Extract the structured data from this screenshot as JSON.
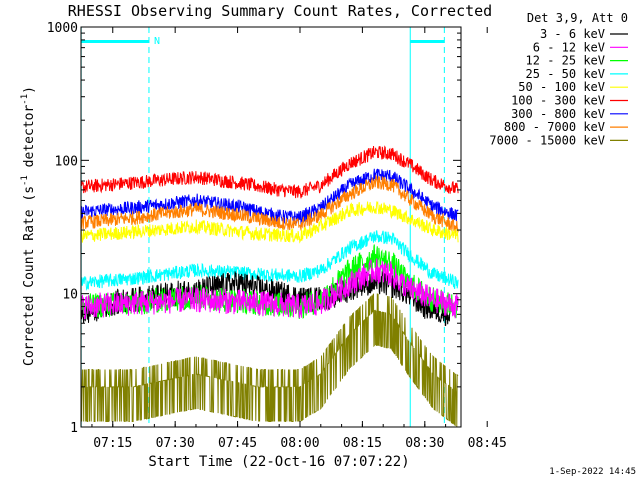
{
  "chart_data": {
    "type": "line",
    "title": "RHESSI Observing Summary Count Rates, Corrected",
    "xlabel": "Start Time (22-Oct-16 07:07:22)",
    "ylabel_main": "Corrected Count Rate (s",
    "ylabel_sup1": "-1",
    "ylabel_mid": " detector",
    "ylabel_sup2": "-1",
    "ylabel_end": ")",
    "yscale": "log",
    "ylim": [
      1,
      1000
    ],
    "xlim_minutes": [
      7.367,
      98.7
    ],
    "x_ticks": [
      {
        "label": "07:15",
        "minute": 15
      },
      {
        "label": "07:30",
        "minute": 30
      },
      {
        "label": "07:45",
        "minute": 45
      },
      {
        "label": "08:00",
        "minute": 60
      },
      {
        "label": "08:15",
        "minute": 75
      },
      {
        "label": "08:30",
        "minute": 90
      },
      {
        "label": "08:45",
        "minute": 105
      }
    ],
    "y_ticks": [
      {
        "label": "1",
        "value": 1
      },
      {
        "label": "10",
        "value": 10
      },
      {
        "label": "100",
        "value": 100
      },
      {
        "label": "1000",
        "value": 1000
      }
    ],
    "legend_title": "Det 3,9, Att 0",
    "timestamp": "1-Sep-2022 14:45",
    "night_marker": "N",
    "markers": {
      "solid_lines_minutes": [
        7.4,
        86.5
      ],
      "dashed_lines_minutes": [
        23.7,
        94.7
      ],
      "night_bars_minutes": [
        [
          7.4,
          23.7
        ],
        [
          86.5,
          94.7
        ]
      ],
      "line_color": "#00ffff"
    },
    "series": [
      {
        "name": "3 - 6 keV",
        "color": "#000000",
        "points": [
          [
            7.4,
            7
          ],
          [
            15,
            8.5
          ],
          [
            25,
            9.5
          ],
          [
            35,
            10.5
          ],
          [
            45,
            12
          ],
          [
            55,
            10
          ],
          [
            62,
            9
          ],
          [
            68,
            9.5
          ],
          [
            75,
            12
          ],
          [
            80,
            12
          ],
          [
            84,
            11
          ],
          [
            90,
            8
          ],
          [
            96,
            7
          ]
        ]
      },
      {
        "name": "6 - 12 keV",
        "color": "#ff00ff",
        "points": [
          [
            7.4,
            8
          ],
          [
            20,
            8.5
          ],
          [
            35,
            9
          ],
          [
            50,
            8.5
          ],
          [
            60,
            8
          ],
          [
            65,
            8.5
          ],
          [
            72,
            12
          ],
          [
            78,
            15
          ],
          [
            82,
            14
          ],
          [
            86,
            11
          ],
          [
            92,
            9
          ],
          [
            98,
            8
          ]
        ]
      },
      {
        "name": "12 - 25 keV",
        "color": "#00ff00",
        "points": [
          [
            7.4,
            8
          ],
          [
            20,
            8.5
          ],
          [
            35,
            9.5
          ],
          [
            50,
            8.5
          ],
          [
            60,
            8
          ],
          [
            65,
            9
          ],
          [
            72,
            15
          ],
          [
            78,
            19
          ],
          [
            82,
            17
          ],
          [
            86,
            12
          ],
          [
            92,
            9
          ],
          [
            98,
            8
          ]
        ]
      },
      {
        "name": "25 - 50 keV",
        "color": "#00ffff",
        "points": [
          [
            7.4,
            12
          ],
          [
            20,
            13
          ],
          [
            35,
            15
          ],
          [
            50,
            14
          ],
          [
            60,
            13.5
          ],
          [
            65,
            15
          ],
          [
            72,
            22
          ],
          [
            78,
            27
          ],
          [
            82,
            26
          ],
          [
            86,
            20
          ],
          [
            92,
            14
          ],
          [
            98,
            12
          ]
        ]
      },
      {
        "name": "50 - 100 keV",
        "color": "#ffff00",
        "points": [
          [
            7.4,
            27
          ],
          [
            20,
            29
          ],
          [
            35,
            32
          ],
          [
            50,
            28
          ],
          [
            60,
            27
          ],
          [
            65,
            32
          ],
          [
            72,
            42
          ],
          [
            78,
            45
          ],
          [
            82,
            42
          ],
          [
            86,
            37
          ],
          [
            92,
            30
          ],
          [
            98,
            27
          ]
        ]
      },
      {
        "name": "100 - 300 keV",
        "color": "#ff0000",
        "points": [
          [
            7.4,
            63
          ],
          [
            20,
            68
          ],
          [
            35,
            75
          ],
          [
            45,
            68
          ],
          [
            55,
            60
          ],
          [
            60,
            58
          ],
          [
            65,
            65
          ],
          [
            72,
            95
          ],
          [
            78,
            115
          ],
          [
            82,
            112
          ],
          [
            86,
            95
          ],
          [
            92,
            70
          ],
          [
            98,
            60
          ]
        ]
      },
      {
        "name": "300 - 800 keV",
        "color": "#0000ff",
        "points": [
          [
            7.4,
            41
          ],
          [
            20,
            44
          ],
          [
            35,
            50
          ],
          [
            45,
            45
          ],
          [
            55,
            38
          ],
          [
            60,
            37
          ],
          [
            65,
            44
          ],
          [
            72,
            65
          ],
          [
            78,
            78
          ],
          [
            82,
            76
          ],
          [
            86,
            62
          ],
          [
            92,
            45
          ],
          [
            98,
            38
          ]
        ]
      },
      {
        "name": "800 - 7000 keV",
        "color": "#ff7f00",
        "points": [
          [
            7.4,
            34
          ],
          [
            20,
            37
          ],
          [
            35,
            43
          ],
          [
            45,
            39
          ],
          [
            55,
            34
          ],
          [
            60,
            33
          ],
          [
            65,
            39
          ],
          [
            72,
            56
          ],
          [
            78,
            68
          ],
          [
            82,
            66
          ],
          [
            86,
            52
          ],
          [
            92,
            38
          ],
          [
            98,
            31
          ]
        ]
      },
      {
        "name": "7000 - 15000 keV",
        "color": "#808000",
        "points": [
          [
            7.4,
            2
          ],
          [
            20,
            2
          ],
          [
            35,
            2.5
          ],
          [
            50,
            2
          ],
          [
            60,
            2
          ],
          [
            65,
            2.5
          ],
          [
            72,
            5
          ],
          [
            78,
            7.5
          ],
          [
            82,
            7
          ],
          [
            86,
            4.5
          ],
          [
            92,
            2.5
          ],
          [
            98,
            1.8
          ]
        ]
      }
    ]
  }
}
